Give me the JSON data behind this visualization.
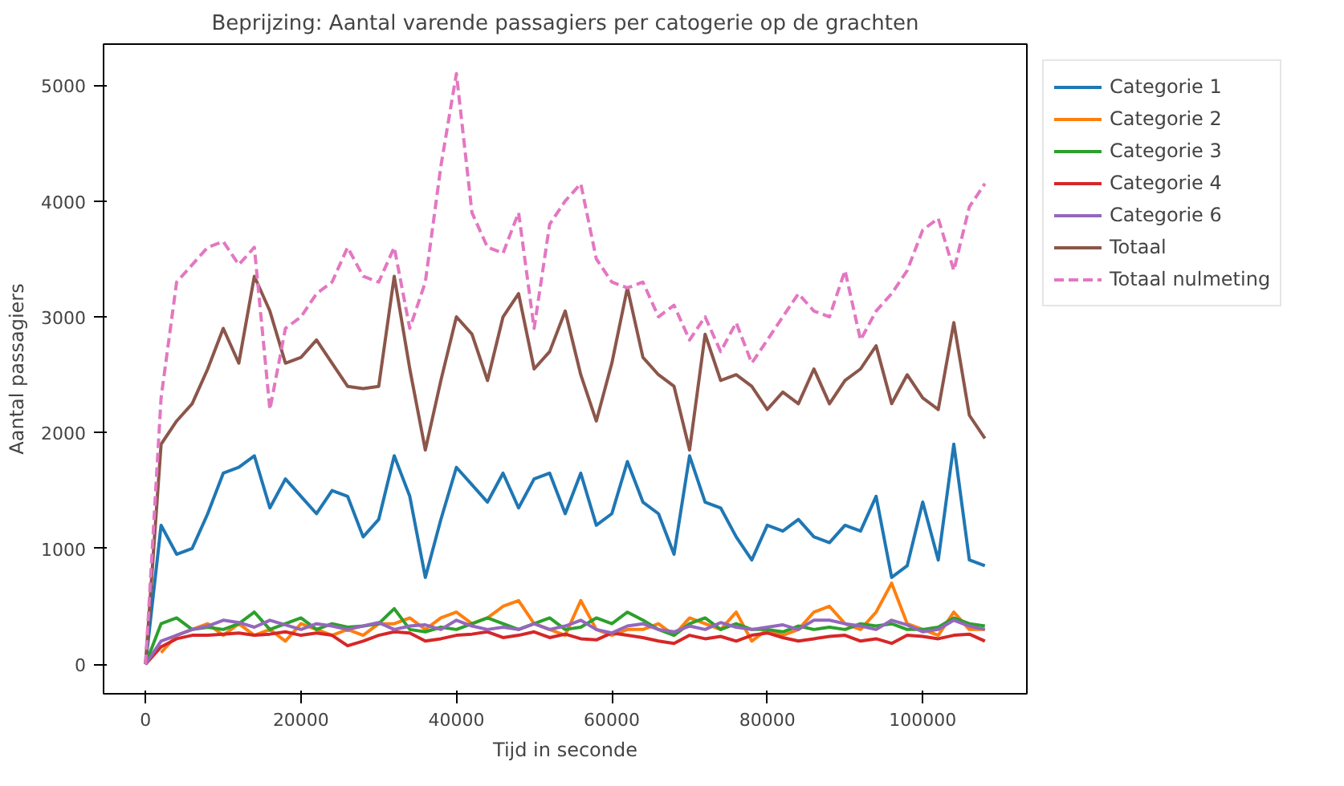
{
  "chart_data": {
    "type": "line",
    "title": "Beprijzing: Aantal varende passagiers per catogerie op de grachten",
    "xlabel": "Tijd in seconde",
    "ylabel": "Aantal passagiers",
    "x": [
      0,
      2000,
      4000,
      6000,
      8000,
      10000,
      12000,
      14000,
      16000,
      18000,
      20000,
      22000,
      24000,
      26000,
      28000,
      30000,
      32000,
      34000,
      36000,
      38000,
      40000,
      42000,
      44000,
      46000,
      48000,
      50000,
      52000,
      54000,
      56000,
      58000,
      60000,
      62000,
      64000,
      66000,
      68000,
      70000,
      72000,
      74000,
      76000,
      78000,
      80000,
      82000,
      84000,
      86000,
      88000,
      90000,
      92000,
      94000,
      96000,
      98000,
      100000,
      102000,
      104000,
      106000,
      108000
    ],
    "series": [
      {
        "name": "Categorie 1",
        "color": "#1f77b4",
        "values": [
          0,
          1200,
          950,
          1000,
          1300,
          1650,
          1700,
          1800,
          1350,
          1600,
          1450,
          1300,
          1500,
          1450,
          1100,
          1250,
          1800,
          1450,
          750,
          1250,
          1700,
          1550,
          1400,
          1650,
          1350,
          1600,
          1650,
          1300,
          1650,
          1200,
          1300,
          1750,
          1400,
          1300,
          950,
          1800,
          1400,
          1350,
          1100,
          900,
          1200,
          1150,
          1250,
          1100,
          1050,
          1200,
          1150,
          1450,
          750,
          850,
          1400,
          900,
          1900,
          900,
          850
        ]
      },
      {
        "name": "Categorie 2",
        "color": "#ff7f0e",
        "x": [
          2000,
          4000,
          6000,
          8000,
          10000,
          12000,
          14000,
          16000,
          18000,
          20000,
          22000,
          24000,
          26000,
          28000,
          30000,
          32000,
          34000,
          36000,
          38000,
          40000,
          42000,
          44000,
          46000,
          48000,
          50000,
          52000,
          54000,
          56000,
          58000,
          60000,
          62000,
          64000,
          66000,
          68000,
          70000,
          72000,
          74000,
          76000,
          78000,
          80000,
          82000,
          84000,
          86000,
          88000,
          90000,
          92000,
          94000,
          96000,
          98000,
          100000,
          102000,
          104000,
          106000,
          108000
        ],
        "values": [
          100,
          250,
          300,
          350,
          250,
          350,
          250,
          300,
          200,
          350,
          300,
          250,
          300,
          250,
          350,
          350,
          400,
          300,
          400,
          450,
          350,
          400,
          500,
          550,
          350,
          300,
          250,
          550,
          300,
          250,
          300,
          300,
          350,
          250,
          400,
          350,
          300,
          450,
          200,
          300,
          250,
          300,
          450,
          500,
          350,
          300,
          450,
          700,
          350,
          300,
          250,
          450,
          300,
          300
        ]
      },
      {
        "name": "Categorie 3",
        "color": "#2ca02c",
        "values": [
          0,
          350,
          400,
          300,
          320,
          300,
          350,
          450,
          300,
          350,
          400,
          300,
          350,
          320,
          330,
          350,
          480,
          300,
          280,
          320,
          300,
          350,
          400,
          350,
          300,
          350,
          400,
          300,
          320,
          400,
          350,
          450,
          380,
          300,
          250,
          350,
          400,
          300,
          350,
          300,
          300,
          280,
          330,
          300,
          320,
          300,
          350,
          330,
          350,
          300,
          300,
          320,
          400,
          350,
          330
        ]
      },
      {
        "name": "Categorie 4",
        "color": "#d62728",
        "values": [
          0,
          150,
          220,
          250,
          250,
          260,
          270,
          250,
          260,
          280,
          250,
          270,
          250,
          160,
          200,
          250,
          280,
          270,
          200,
          220,
          250,
          260,
          280,
          230,
          250,
          280,
          230,
          260,
          220,
          210,
          270,
          250,
          230,
          200,
          180,
          250,
          220,
          240,
          200,
          250,
          270,
          230,
          200,
          220,
          240,
          250,
          200,
          220,
          180,
          250,
          240,
          220,
          250,
          260,
          200
        ]
      },
      {
        "name": "Categorie 6",
        "color": "#9467bd",
        "values": [
          0,
          200,
          250,
          300,
          330,
          380,
          360,
          320,
          380,
          340,
          300,
          350,
          330,
          300,
          330,
          360,
          300,
          330,
          340,
          300,
          380,
          330,
          300,
          320,
          300,
          350,
          300,
          330,
          380,
          300,
          270,
          330,
          350,
          300,
          280,
          330,
          300,
          360,
          320,
          300,
          320,
          340,
          300,
          380,
          380,
          350,
          330,
          300,
          380,
          340,
          280,
          300,
          380,
          330,
          300
        ]
      },
      {
        "name": "Totaal",
        "color": "#8c564b",
        "values": [
          0,
          1900,
          2100,
          2250,
          2550,
          2900,
          2600,
          3350,
          3050,
          2600,
          2650,
          2800,
          2600,
          2400,
          2380,
          2400,
          3350,
          2550,
          1850,
          2450,
          3000,
          2850,
          2450,
          3000,
          3200,
          2550,
          2700,
          3050,
          2500,
          2100,
          2600,
          3250,
          2650,
          2500,
          2400,
          1850,
          2850,
          2450,
          2500,
          2400,
          2200,
          2350,
          2250,
          2550,
          2250,
          2450,
          2550,
          2750,
          2250,
          2500,
          2300,
          2200,
          2950,
          2150,
          1950
        ]
      },
      {
        "name": "Totaal nulmeting",
        "color": "#e377c2",
        "line_style": "dashed",
        "values": [
          0,
          2300,
          3300,
          3450,
          3600,
          3650,
          3450,
          3600,
          2200,
          2900,
          3000,
          3200,
          3300,
          3600,
          3350,
          3300,
          3600,
          2900,
          3300,
          4300,
          5100,
          3900,
          3600,
          3550,
          3900,
          2900,
          3800,
          4000,
          4150,
          3500,
          3300,
          3250,
          3300,
          3000,
          3100,
          2800,
          3000,
          2700,
          2950,
          2600,
          2800,
          3000,
          3200,
          3050,
          3000,
          3400,
          2800,
          3050,
          3200,
          3400,
          3750,
          3850,
          3400,
          3950,
          4150
        ]
      }
    ],
    "xlim": [
      -5400,
      113400
    ],
    "ylim": [
      -255,
      5355
    ],
    "xticks": [
      0,
      20000,
      40000,
      60000,
      80000,
      100000
    ],
    "yticks": [
      0,
      1000,
      2000,
      3000,
      4000,
      5000
    ],
    "grid": false,
    "legend": "right",
    "line_style": "solid"
  }
}
